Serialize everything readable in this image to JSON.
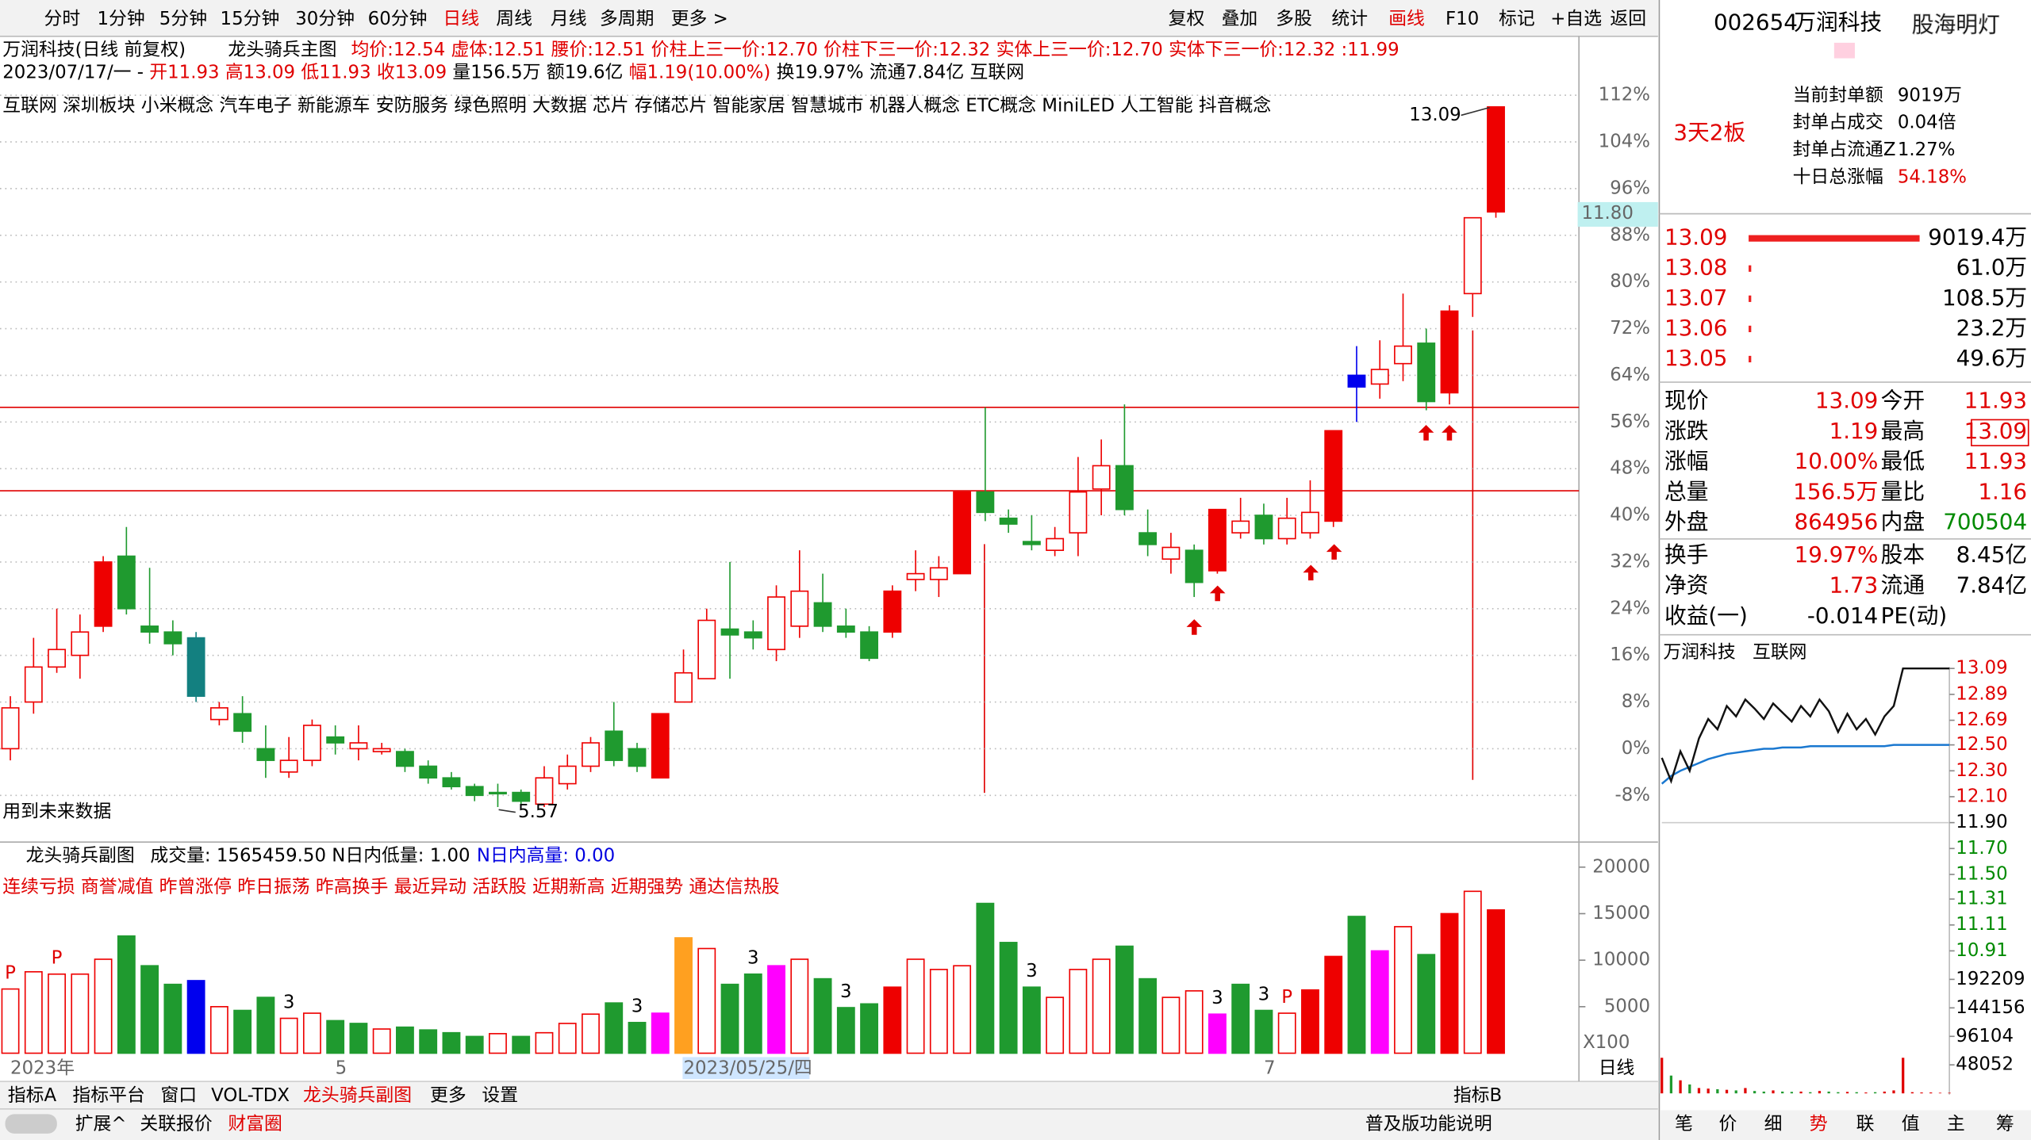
{
  "toolbar": {
    "left": [
      "分时",
      "1分钟",
      "5分钟",
      "15分钟",
      "30分钟",
      "60分钟",
      "日线",
      "周线",
      "月线",
      "多周期",
      "更多 >"
    ],
    "active_left": 6,
    "right": [
      "复权",
      "叠加",
      "多股",
      "统计",
      "画线",
      "F10",
      "标记",
      "+自选",
      "返回"
    ],
    "active_right": 4
  },
  "header": {
    "title": "万润科技(日线 前复权)",
    "indicator": "龙头骑兵主图",
    "indicator_values": "均价:12.54 虚体:12.51 腰价:12.51 价柱上三一价:12.70 价柱下三一价:12.32 实体上三一价:12.70 实体下三一价:12.32 :11.99",
    "info": [
      {
        "text": "2023/07/17/一 - ",
        "color": "#000000"
      },
      {
        "text": "开11.93 高13.09 低11.93 收13.09",
        "color": "#e00000"
      },
      {
        "text": " 量156.5万 额19.6亿 ",
        "color": "#000000"
      },
      {
        "text": "幅1.19(10.00%)",
        "color": "#e00000"
      },
      {
        "text": " 换19.97% 流通7.84亿 互联网",
        "color": "#000000"
      }
    ],
    "concepts": "互联网 深圳板块 小米概念 汽车电子 新能源车 安防服务 绿色照明 大数据 芯片 存储芯片 智能家居 智慧城市 机器人概念 ETC概念 MiniLED 人工智能 抖音概念"
  },
  "main_chart": {
    "type": "candlestick",
    "open": [
      0,
      8,
      14,
      16,
      21,
      33,
      21,
      20,
      19,
      5,
      6,
      0,
      -4,
      -2,
      2,
      0,
      -0.5,
      -0.5,
      -3,
      -5,
      -6.5,
      -7.5,
      -7.5,
      -9.5,
      -6,
      -3,
      3,
      0,
      -5,
      8,
      12,
      20.5,
      20,
      17,
      21,
      25,
      21,
      20,
      20,
      29,
      29,
      30,
      44,
      39.5,
      35.5,
      34,
      37,
      44.5,
      48.5,
      37,
      32.5,
      34,
      30.5,
      37,
      40,
      36,
      37,
      39,
      64,
      62.5,
      66,
      69.5,
      61,
      78,
      92
    ],
    "close": [
      7,
      14,
      17,
      20,
      32,
      24,
      20,
      18,
      9,
      7,
      3,
      -2,
      -2,
      4,
      1,
      1,
      0,
      -3,
      -5,
      -6.5,
      -8,
      -7.5,
      -9,
      -5,
      -3,
      1,
      -2,
      -3,
      6,
      13,
      22,
      19.5,
      19,
      26,
      27,
      21,
      20,
      15.5,
      27,
      30,
      31,
      44,
      40.5,
      38.5,
      35,
      36,
      44,
      48.5,
      41,
      35,
      34.5,
      28.5,
      41,
      39,
      36,
      39.5,
      40.5,
      54.5,
      62,
      65,
      69,
      59.5,
      75,
      91,
      110
    ],
    "high": [
      9,
      19,
      24,
      23,
      33,
      38,
      31,
      22,
      20,
      8,
      9,
      4,
      2,
      5,
      4,
      4,
      1,
      0,
      -2,
      -4,
      -6,
      -6,
      -7,
      -3,
      -1,
      2,
      8,
      1,
      6,
      17,
      24,
      32,
      22,
      28,
      34,
      30,
      24,
      21,
      28,
      34,
      33,
      44,
      58.5,
      41,
      40,
      38,
      50,
      53,
      59,
      41,
      37,
      35,
      41,
      43,
      42,
      43,
      46,
      54.5,
      69,
      70,
      78,
      72,
      76,
      91,
      110
    ],
    "low": [
      -2,
      6,
      13,
      12,
      20,
      23,
      18,
      16,
      8,
      4,
      1,
      -5,
      -5,
      -3,
      -1,
      -2,
      -1,
      -4,
      -6,
      -7,
      -9,
      -10,
      -10,
      -10,
      -7,
      -4,
      -3,
      -4,
      -5,
      8,
      12,
      12,
      17,
      15,
      19,
      20,
      19,
      15,
      19,
      27,
      26,
      30,
      39,
      37,
      34,
      33,
      33,
      40,
      40,
      33,
      30,
      26,
      30,
      36,
      35,
      35,
      36,
      38,
      56,
      60,
      63,
      58,
      59,
      74,
      91
    ],
    "colors": [
      "#ee0000",
      "#ee0000",
      "#ee0000",
      "#ee0000",
      "#ee0000",
      "#1f9a2f",
      "#1f9a2f",
      "#1f9a2f",
      "#138080",
      "#ee0000",
      "#1f9a2f",
      "#1f9a2f",
      "#ee0000",
      "#ee0000",
      "#1f9a2f",
      "#ee0000",
      "#ee0000",
      "#1f9a2f",
      "#1f9a2f",
      "#1f9a2f",
      "#1f9a2f",
      "#1f9a2f",
      "#1f9a2f",
      "#ee0000",
      "#ee0000",
      "#ee0000",
      "#1f9a2f",
      "#1f9a2f",
      "#ee0000",
      "#ee0000",
      "#ee0000",
      "#1f9a2f",
      "#1f9a2f",
      "#ee0000",
      "#ee0000",
      "#1f9a2f",
      "#1f9a2f",
      "#1f9a2f",
      "#ee0000",
      "#ee0000",
      "#ee0000",
      "#ee0000",
      "#1f9a2f",
      "#1f9a2f",
      "#1f9a2f",
      "#ee0000",
      "#ee0000",
      "#ee0000",
      "#1f9a2f",
      "#1f9a2f",
      "#ee0000",
      "#1f9a2f",
      "#ee0000",
      "#ee0000",
      "#1f9a2f",
      "#ee0000",
      "#ee0000",
      "#ee0000",
      "#0000ee",
      "#ee0000",
      "#ee0000",
      "#1f9a2f",
      "#ee0000",
      "#ee0000",
      "#ee0000"
    ],
    "filled": [
      false,
      false,
      false,
      false,
      true,
      true,
      true,
      true,
      true,
      false,
      true,
      true,
      false,
      false,
      true,
      false,
      false,
      true,
      true,
      true,
      true,
      true,
      true,
      false,
      false,
      false,
      true,
      true,
      true,
      false,
      false,
      true,
      true,
      false,
      false,
      true,
      true,
      true,
      true,
      false,
      false,
      true,
      true,
      true,
      true,
      false,
      false,
      false,
      true,
      true,
      false,
      true,
      true,
      false,
      true,
      false,
      false,
      true,
      true,
      false,
      false,
      true,
      true,
      false,
      true
    ],
    "ylim": [
      -16,
      115
    ],
    "yticks": [
      {
        "value": -8,
        "label": "-8%"
      },
      {
        "value": 0,
        "label": "0%"
      },
      {
        "value": 8,
        "label": "8%"
      },
      {
        "value": 16,
        "label": "16%"
      },
      {
        "value": 24,
        "label": "24%"
      },
      {
        "value": 32,
        "label": "32%"
      },
      {
        "value": 40,
        "label": "40%"
      },
      {
        "value": 48,
        "label": "48%"
      },
      {
        "value": 56,
        "label": "56%"
      },
      {
        "value": 64,
        "label": "64%"
      },
      {
        "value": 72,
        "label": "72%"
      },
      {
        "value": 80,
        "label": "80%"
      },
      {
        "value": 88,
        "label": "88%"
      },
      {
        "value": 96,
        "label": "96%"
      },
      {
        "value": 104,
        "label": "104%"
      },
      {
        "value": 112,
        "label": "112%"
      }
    ],
    "grid": true,
    "levels": [
      58.5,
      44.2
    ],
    "level_color": "#e00000",
    "high_label": "13.09",
    "low_label": "5.57",
    "cursor_label": "11.80",
    "note": "用到未来数据"
  },
  "sub_chart": {
    "type": "bar",
    "title": "龙头骑兵副图",
    "stats": "成交量: 1565459.50 N日内低量: 1.00",
    "stats_blue": "N日内高量: 0.00",
    "signals": "连续亏损 商誉减值 昨曾涨停 昨日振荡 昨高换手 最近异动 活跃股 近期新高 近期强势 通达信热股",
    "values": [
      6900,
      8750,
      8500,
      8500,
      10100,
      12600,
      9400,
      7400,
      7800,
      5000,
      4600,
      6000,
      3750,
      4300,
      3500,
      3200,
      2600,
      2800,
      2500,
      2200,
      1800,
      2100,
      1800,
      2200,
      3200,
      4200,
      5400,
      3300,
      4300,
      12400,
      11250,
      7400,
      8500,
      9400,
      10100,
      8000,
      4900,
      5300,
      7100,
      10100,
      9000,
      9400,
      16100,
      11900,
      7100,
      6000,
      9000,
      10100,
      11500,
      8000,
      6000,
      6700,
      4200,
      7400,
      4600,
      4300,
      6800,
      10400,
      14700,
      11000,
      13600,
      10600,
      15000,
      17400,
      15400
    ],
    "colors": [
      "#ee0000",
      "#ee0000",
      "#ee0000",
      "#ee0000",
      "#ee0000",
      "#1f9a2f",
      "#1f9a2f",
      "#1f9a2f",
      "#0000ee",
      "#ee0000",
      "#1f9a2f",
      "#1f9a2f",
      "#ee0000",
      "#ee0000",
      "#1f9a2f",
      "#1f9a2f",
      "#ee0000",
      "#1f9a2f",
      "#1f9a2f",
      "#1f9a2f",
      "#1f9a2f",
      "#ee0000",
      "#1f9a2f",
      "#ee0000",
      "#ee0000",
      "#ee0000",
      "#1f9a2f",
      "#1f9a2f",
      "#ff00ff",
      "#ffa020",
      "#ee0000",
      "#1f9a2f",
      "#1f9a2f",
      "#ff00ff",
      "#ee0000",
      "#1f9a2f",
      "#1f9a2f",
      "#1f9a2f",
      "#ee0000",
      "#ee0000",
      "#ee0000",
      "#ee0000",
      "#1f9a2f",
      "#1f9a2f",
      "#1f9a2f",
      "#ee0000",
      "#ee0000",
      "#ee0000",
      "#1f9a2f",
      "#1f9a2f",
      "#ee0000",
      "#ee0000",
      "#ff00ff",
      "#1f9a2f",
      "#1f9a2f",
      "#ee0000",
      "#ee0000",
      "#ee0000",
      "#1f9a2f",
      "#ff00ff",
      "#ee0000",
      "#1f9a2f",
      "#ee0000",
      "#ee0000",
      "#ee0000"
    ],
    "filled": [
      false,
      false,
      false,
      false,
      false,
      true,
      true,
      true,
      true,
      false,
      true,
      true,
      false,
      false,
      true,
      true,
      false,
      true,
      true,
      true,
      true,
      false,
      true,
      false,
      false,
      false,
      true,
      true,
      true,
      true,
      false,
      true,
      true,
      true,
      false,
      true,
      true,
      true,
      true,
      false,
      false,
      false,
      true,
      true,
      true,
      false,
      false,
      false,
      true,
      true,
      false,
      false,
      true,
      true,
      true,
      false,
      true,
      true,
      true,
      true,
      false,
      true,
      true,
      false,
      true
    ],
    "marks": [
      "P",
      null,
      "P",
      null,
      null,
      null,
      null,
      null,
      null,
      null,
      null,
      null,
      "3",
      null,
      null,
      null,
      null,
      null,
      null,
      null,
      null,
      null,
      null,
      null,
      null,
      null,
      null,
      "3",
      null,
      null,
      null,
      null,
      "3",
      null,
      null,
      null,
      "3",
      null,
      null,
      null,
      null,
      null,
      null,
      null,
      "3",
      null,
      null,
      null,
      null,
      null,
      null,
      null,
      "3",
      null,
      "3",
      "P",
      null,
      null,
      null,
      null,
      null,
      null,
      null,
      null,
      null
    ],
    "categories": [
      "2023年",
      null,
      null,
      null,
      null,
      null,
      null,
      null,
      null,
      null,
      null,
      null,
      null,
      null,
      "5",
      null,
      null,
      null,
      null,
      null,
      null,
      null,
      null,
      null,
      null,
      null,
      null,
      null,
      null,
      "2023/05/25/四",
      null,
      null,
      null,
      null,
      null,
      null,
      null,
      null,
      null,
      null,
      null,
      null,
      null,
      null,
      null,
      null,
      null,
      null,
      null,
      null,
      null,
      null,
      null,
      null,
      "7",
      null,
      null,
      null,
      null,
      null,
      null,
      null,
      null,
      null,
      null
    ],
    "ylim": [
      0,
      22000
    ],
    "yticks": [
      5000,
      10000,
      15000,
      20000
    ],
    "unit": "X100",
    "period": "日线"
  },
  "quote": {
    "code": "002654",
    "name": "万润科技",
    "brand": "股海明灯",
    "boards": "3天2板",
    "seal": [
      {
        "label": "当前封单额",
        "value": "9019万"
      },
      {
        "label": "封单占成交",
        "value": "0.04倍"
      },
      {
        "label": "封单占流通Z",
        "value": "1.27%"
      },
      {
        "label": "十日总涨幅",
        "value": "54.18%"
      }
    ],
    "book": {
      "prices": [
        13.09,
        13.08,
        13.07,
        13.06,
        13.05
      ],
      "values": [
        9019.4,
        61.0,
        108.5,
        23.2,
        49.6
      ],
      "value_labels": [
        "9019.4万",
        "61.0万",
        "108.5万",
        "23.2万",
        "49.6万"
      ]
    },
    "stats": [
      [
        "现价",
        "13.09",
        "今开",
        "11.93"
      ],
      [
        "涨跌",
        "1.19",
        "最高",
        "13.09"
      ],
      [
        "涨幅",
        "10.00%",
        "最低",
        "11.93"
      ],
      [
        "总量",
        "156.5万",
        "量比",
        "1.16"
      ],
      [
        "外盘",
        "864956",
        "内盘",
        "700504"
      ],
      [
        "换手",
        "19.97%",
        "股本",
        "8.45亿"
      ],
      [
        "净资",
        "1.73",
        "流通",
        "7.84亿"
      ],
      [
        "收益(一)",
        "-0.014",
        "PE(动)"
      ]
    ]
  },
  "intraday": {
    "type": "line",
    "name": "万润科技",
    "sector": "互联网",
    "price": [
      12.4,
      12.22,
      12.45,
      12.3,
      12.55,
      12.7,
      12.62,
      12.8,
      12.72,
      12.85,
      12.78,
      12.7,
      12.82,
      12.75,
      12.68,
      12.8,
      12.72,
      12.85,
      12.76,
      12.6,
      12.74,
      12.62,
      12.7,
      12.58,
      12.72,
      12.8,
      13.09,
      13.09,
      13.09,
      13.09,
      13.09,
      13.09
    ],
    "avg": [
      12.2,
      12.26,
      12.3,
      12.33,
      12.36,
      12.39,
      12.41,
      12.43,
      12.44,
      12.45,
      12.46,
      12.47,
      12.47,
      12.48,
      12.48,
      12.48,
      12.49,
      12.49,
      12.49,
      12.49,
      12.49,
      12.49,
      12.49,
      12.49,
      12.49,
      12.5,
      12.5,
      12.5,
      12.5,
      12.5,
      12.5,
      12.5
    ],
    "volume": [
      60000,
      30000,
      22000,
      15000,
      9000,
      8000,
      7000,
      6000,
      5000,
      9000,
      4000,
      3000,
      5000,
      3000,
      2500,
      3000,
      2000,
      4000,
      3000,
      2000,
      2500,
      2000,
      1500,
      2000,
      3000,
      5000,
      60000,
      2000,
      1500,
      1500,
      1000,
      1000
    ],
    "ylim": [
      10.91,
      13.09
    ],
    "base": 11.9,
    "yticks": [
      13.09,
      12.89,
      12.69,
      {
        "value": 12.5,
        "label": "12.50"
      },
      {
        "value": 12.3,
        "label": "12.30"
      },
      {
        "value": 12.1,
        "label": "12.10"
      },
      {
        "value": 11.9,
        "label": "11.90"
      },
      {
        "value": 11.7,
        "label": "11.70"
      },
      {
        "value": 11.5,
        "label": "11.50"
      },
      11.31,
      11.11,
      10.91
    ],
    "vlim": [
      0,
      192209
    ],
    "vticks": [
      48052,
      96104,
      144156,
      192209
    ]
  },
  "bottom": {
    "tabs": [
      "指标A",
      "指标平台",
      "窗口",
      "VOL-TDX",
      "龙头骑兵副图",
      "更多",
      "设置"
    ],
    "active_tab": 4,
    "tab_b": "指标B",
    "row2": [
      "扩展^",
      "关联报价"
    ],
    "row2_red": "财富圈",
    "help": "普及版功能说明",
    "right_tabs": [
      "笔",
      "价",
      "细",
      "势",
      "联",
      "值",
      "主",
      "筹"
    ],
    "active_right": 3
  }
}
